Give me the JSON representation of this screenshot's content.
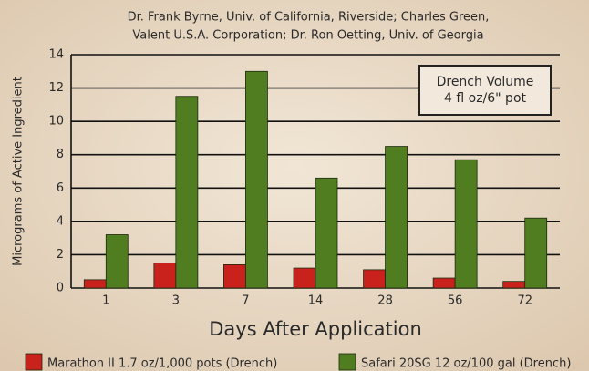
{
  "chart_data": {
    "type": "bar",
    "title": [
      "Dr. Frank Byrne, Univ. of California, Riverside; Charles Green,",
      "Valent U.S.A. Corporation; Dr. Ron Oetting, Univ. of Georgia"
    ],
    "annotation": [
      "Drench Volume",
      "4 fl oz/6\" pot"
    ],
    "x_label": "Days After Application",
    "y_label": "Micrograms of Active Ingredient",
    "categories": [
      "1",
      "3",
      "7",
      "14",
      "28",
      "56",
      "72"
    ],
    "series": [
      {
        "name": "Marathon II 1.7 oz/1,000 pots (Drench)",
        "color": "#c9221d",
        "values": [
          0.5,
          1.5,
          1.4,
          1.2,
          1.1,
          0.6,
          0.4
        ]
      },
      {
        "name": "Safari 20SG 12 oz/100 gal (Drench)",
        "color": "#4f7d1f",
        "values": [
          3.2,
          11.5,
          13.0,
          6.6,
          8.5,
          7.7,
          4.2
        ]
      }
    ],
    "ylim": [
      0,
      14
    ],
    "yticks": [
      0,
      2,
      4,
      6,
      8,
      10,
      12,
      14
    ],
    "grid": true
  }
}
